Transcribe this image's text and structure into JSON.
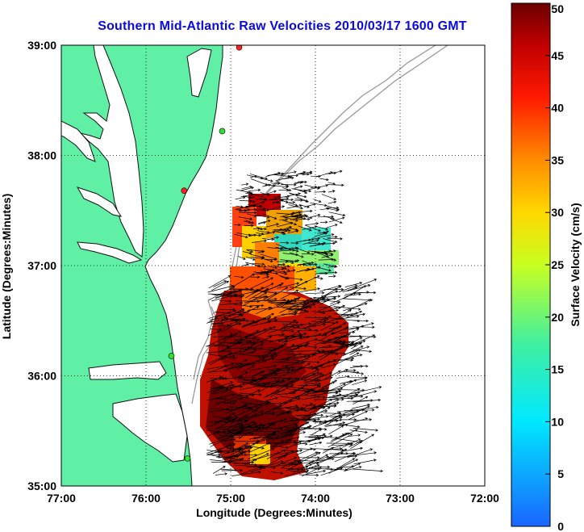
{
  "title": "Southern Mid-Atlantic Raw Velocities 2010/03/17 1600 GMT",
  "map": {
    "xlabel": "Longitude (Degrees:Minutes)",
    "ylabel": "Latitude (Degrees:Minutes)",
    "x_ticks": [
      "77:00",
      "76:00",
      "75:00",
      "74:00",
      "73:00",
      "72:00"
    ],
    "y_ticks": [
      "39:00",
      "38:00",
      "37:00",
      "36:00",
      "35:00"
    ],
    "lon_range": [
      -77,
      -72
    ],
    "lat_range": [
      35,
      39
    ],
    "grid": "dotted",
    "land_color": "#5ff0a5",
    "sites": [
      {
        "lon": -74.9,
        "lat": 38.98,
        "color": "#ff2020"
      },
      {
        "lon": -75.1,
        "lat": 38.22,
        "color": "#30e030"
      },
      {
        "lon": -75.55,
        "lat": 37.68,
        "color": "#ff2020"
      },
      {
        "lon": -75.7,
        "lat": 36.18,
        "color": "#30e030"
      },
      {
        "lon": -75.51,
        "lat": 35.25,
        "color": "#30e030"
      }
    ]
  },
  "colorbar": {
    "label": "Surface Velocity (cm/s)",
    "ticks": [
      "0",
      "5",
      "10",
      "15",
      "20",
      "25",
      "30",
      "35",
      "40",
      "45",
      "50"
    ],
    "range": [
      0,
      50
    ]
  }
}
